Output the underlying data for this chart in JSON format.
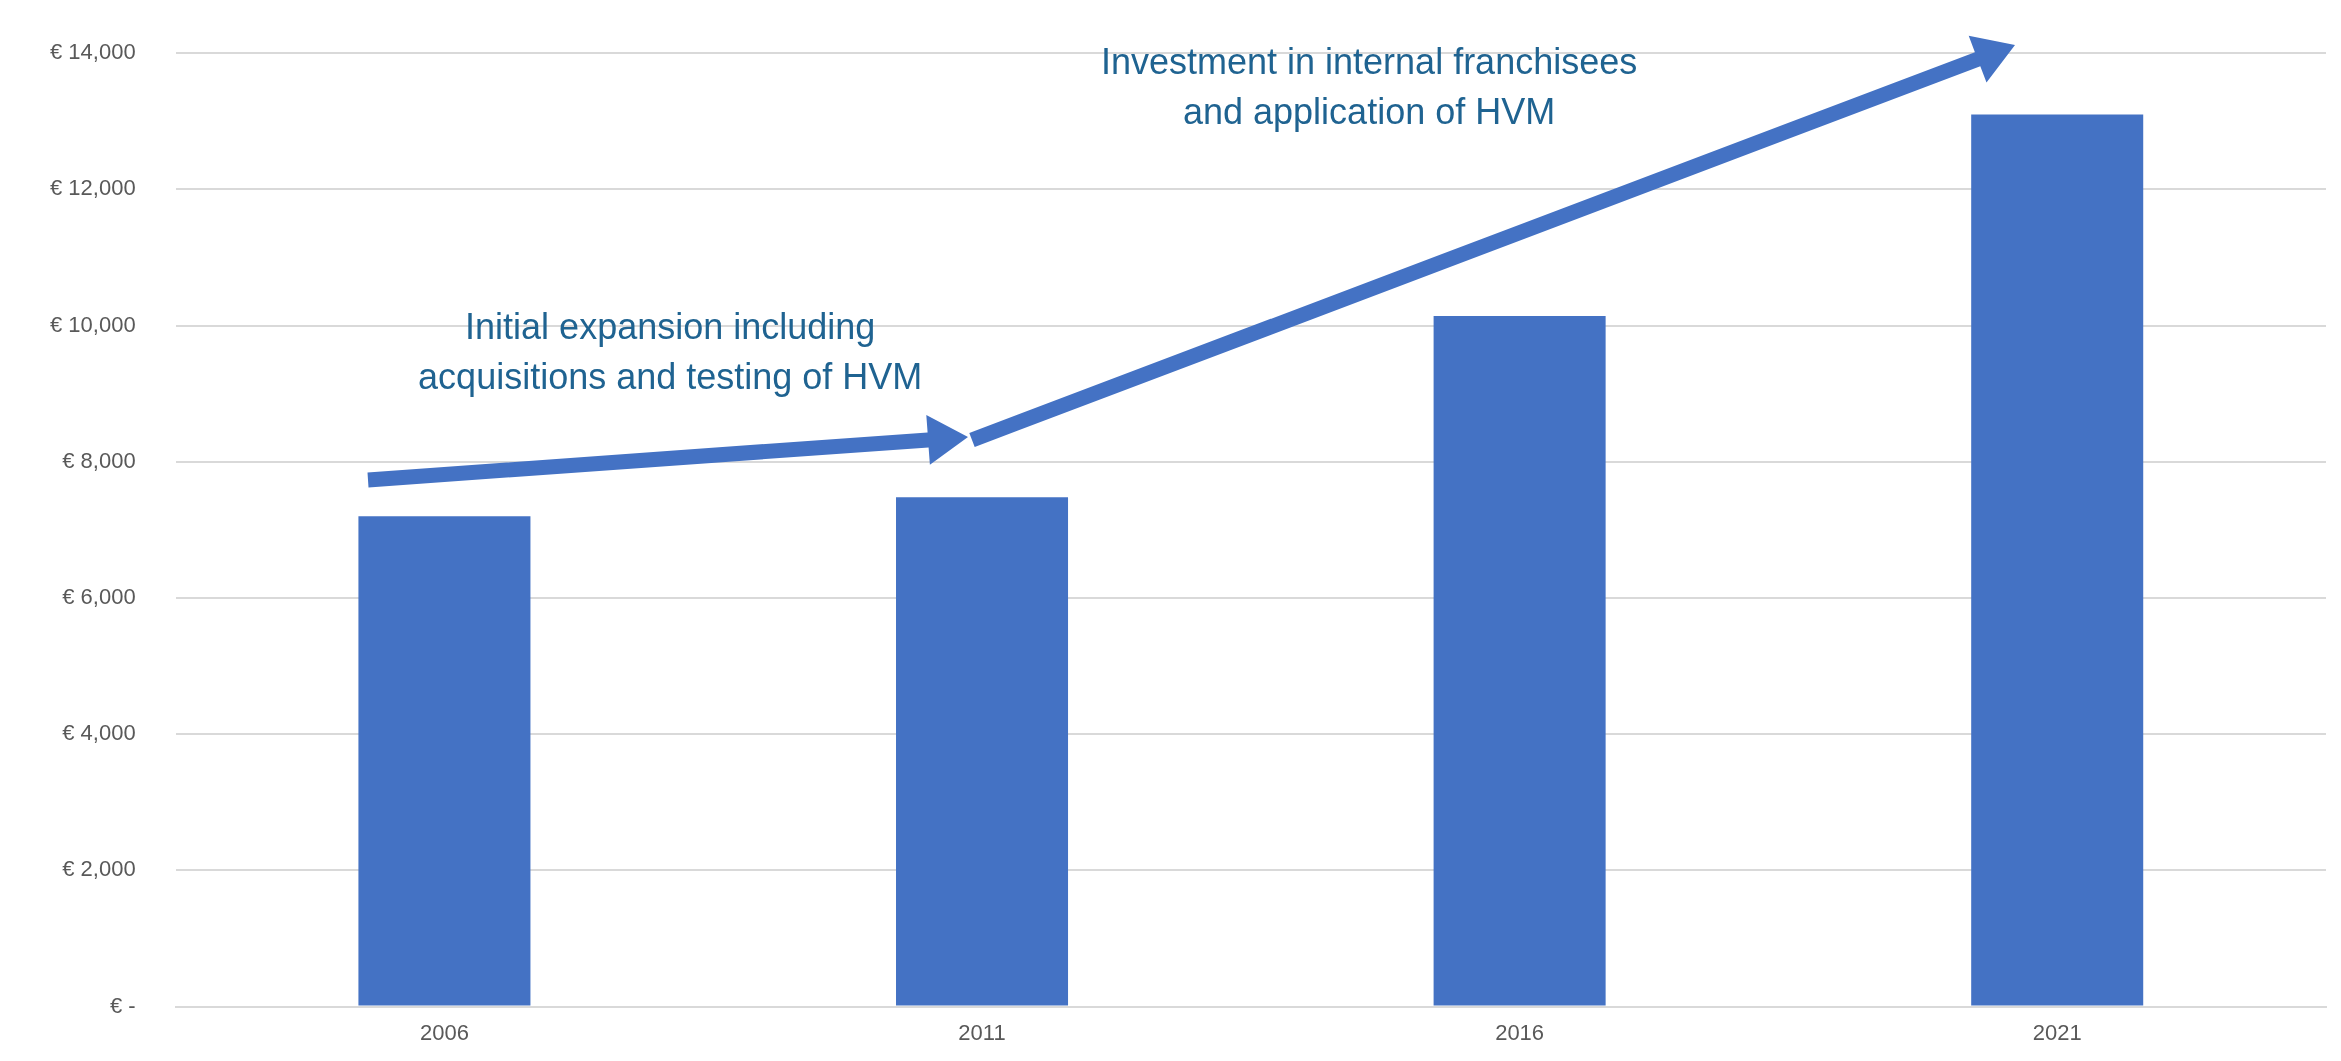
{
  "chart_data": {
    "type": "bar",
    "categories": [
      "2006",
      "2011",
      "2016",
      "2021"
    ],
    "values": [
      7200,
      7480,
      10140,
      13100
    ],
    "color": "#4472c4",
    "ylim": [
      0,
      14000
    ],
    "yticks": [
      {
        "value": 0,
        "label": "€ -"
      },
      {
        "value": 2000,
        "label": "€ 2,000"
      },
      {
        "value": 4000,
        "label": "€ 4,000"
      },
      {
        "value": 6000,
        "label": "€ 6,000"
      },
      {
        "value": 8000,
        "label": "€ 8,000"
      },
      {
        "value": 10000,
        "label": "€ 10,000"
      },
      {
        "value": 12000,
        "label": "€ 12,000"
      },
      {
        "value": 14000,
        "label": "€ 14,000"
      }
    ],
    "grid": "y",
    "annotations": [
      "Initial expansion including\nacquisitions and testing of HVM",
      "Investment in internal franchisees\nand application of HVM"
    ]
  }
}
